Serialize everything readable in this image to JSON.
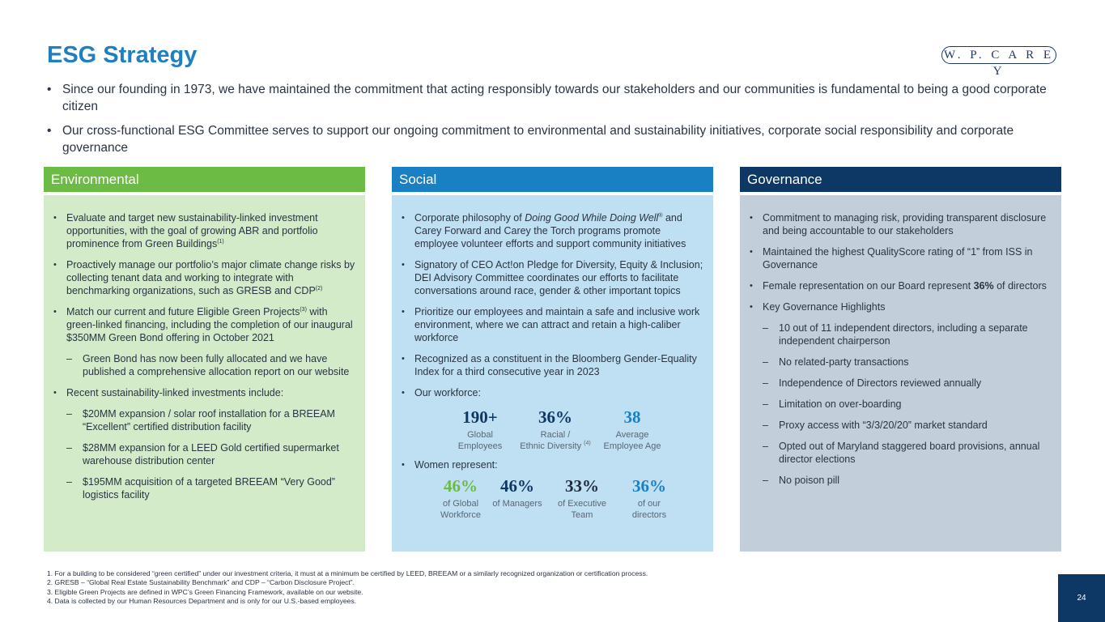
{
  "title": "ESG Strategy",
  "logo_text": "W. P. C A R E Y",
  "intro": [
    "Since our founding in 1973, we have maintained the commitment that acting responsibly towards our stakeholders and our communities is fundamental to being a good corporate citizen",
    "Our cross-functional ESG Committee serves to support our ongoing commitment to environmental and sustainability initiatives, corporate social responsibility and corporate governance"
  ],
  "environmental": {
    "heading": "Environmental",
    "b1": "Evaluate and target new sustainability-linked investment opportunities, with the goal of growing ABR and portfolio prominence from Green Buildings",
    "b1_note": "(1)",
    "b2": "Proactively manage our portfolio’s major climate change risks by collecting tenant data and working to integrate with benchmarking organizations, such as GRESB and CDP",
    "b2_note": "(2)",
    "b3_a": "Match our current and future Eligible Green Projects",
    "b3_note": "(3)",
    "b3_b": " with green-linked financing, including the completion of our inaugural $350MM Green Bond offering in October 2021",
    "b3_sub": "Green Bond has now been fully allocated and we have published a comprehensive allocation report on our website",
    "b4": "Recent sustainability-linked investments include:",
    "b4_sub1": "$20MM expansion / solar roof installation for a BREEAM “Excellent” certified distribution facility",
    "b4_sub2": "$28MM expansion for a LEED Gold certified supermarket warehouse distribution center",
    "b4_sub3": "$195MM acquisition of a targeted BREEAM “Very Good” logistics facility"
  },
  "social": {
    "heading": "Social",
    "b1_a": "Corporate philosophy of ",
    "b1_em": "Doing Good While Doing Well",
    "b1_reg": "®",
    "b1_b": " and Carey Forward and Carey the Torch programs promote employee volunteer efforts and support community initiatives",
    "b2": "Signatory of CEO Act!on Pledge for Diversity, Equity & Inclusion; DEI Advisory Committee coordinates our efforts to facilitate conversations around race, gender & other important topics",
    "b3": "Prioritize our employees and maintain a safe and inclusive work environment, where we can attract and retain a high-caliber workforce",
    "b4": "Recognized as a constituent in the Bloomberg Gender-Equality Index for a third consecutive year in 2023",
    "b5": "Our workforce:",
    "workforce": [
      {
        "num": "190+",
        "label1": "Global",
        "label2": "Employees",
        "color": "#0d3866"
      },
      {
        "num": "36%",
        "label1": "Racial /",
        "label2": "Ethnic Diversity",
        "note": "(4)",
        "color": "#0d3866"
      },
      {
        "num": "38",
        "label1": "Average",
        "label2": "Employee Age",
        "color": "#1a80c4"
      }
    ],
    "b6": "Women represent:",
    "women": [
      {
        "num": "46%",
        "label1": "of Global",
        "label2": "Workforce",
        "color": "#6cbb45"
      },
      {
        "num": "46%",
        "label1": "of Managers",
        "label2": "",
        "color": "#0d3866"
      },
      {
        "num": "33%",
        "label1": "of Executive",
        "label2": "Team",
        "color": "#1f2b3a"
      },
      {
        "num": "36%",
        "label1": "of our",
        "label2": "directors",
        "color": "#1a80c4"
      }
    ]
  },
  "governance": {
    "heading": "Governance",
    "b1": "Commitment to managing risk, providing transparent disclosure and being accountable to our stakeholders",
    "b2": "Maintained the highest QualityScore rating of “1” from ISS in Governance",
    "b3_a": "Female representation on our Board represent ",
    "b3_bold": "36%",
    "b3_b": " of directors",
    "b4": "Key Governance Highlights",
    "subs": [
      "10 out of 11 independent directors, including a separate independent chairperson",
      "No related-party transactions",
      "Independence of Directors reviewed annually",
      "Limitation on over-boarding",
      "Proxy access with “3/3/20/20” market standard",
      "Opted out of Maryland staggered board provisions, annual director elections",
      "No poison pill"
    ]
  },
  "footnotes": [
    "1.  For a building to be considered “green certified” under our investment criteria, it must at a minimum be certified by LEED, BREEAM or a similarly recognized organization or certification process.",
    "2. GRESB – “Global Real Estate Sustainability Benchmark” and CDP – “Carbon Disclosure Project”.",
    "3. Eligible Green Projects are defined in WPC’s Green Financing Framework, available on our website.",
    "4. Data is collected by our Human Resources Department and is only for our U.S.-based employees."
  ],
  "page_number": "24"
}
